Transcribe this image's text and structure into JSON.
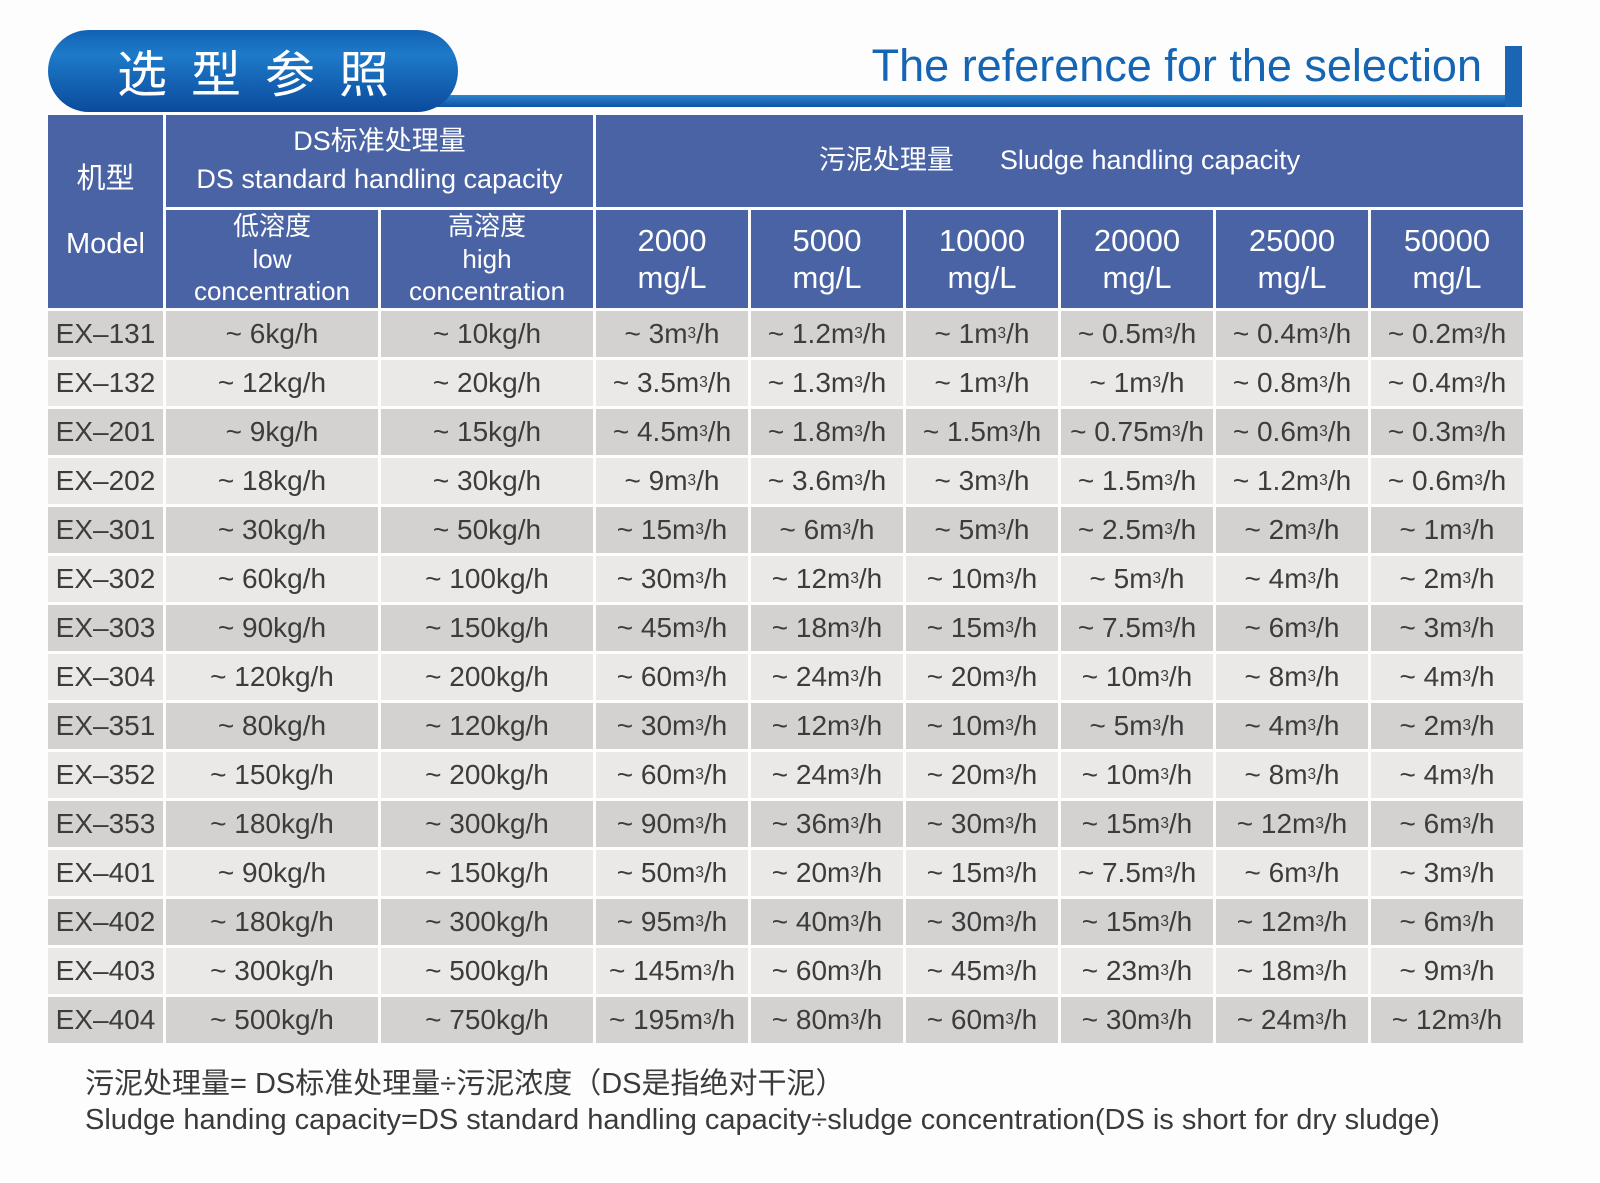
{
  "header": {
    "title_zh": "选型参照",
    "title_en": "The reference for the selection"
  },
  "table": {
    "header": {
      "model_zh": "机型",
      "model_en": "Model",
      "ds_group_zh": "DS标准处理量",
      "ds_group_en": "DS standard handling capacity",
      "sludge_group_zh": "污泥处理量",
      "sludge_group_en": "Sludge handling capacity",
      "sub_columns": [
        {
          "lines": [
            "低溶度",
            "low",
            "concentration"
          ]
        },
        {
          "lines": [
            "高溶度",
            "high",
            "concentration"
          ]
        }
      ],
      "concentration_columns": [
        {
          "value": "2000",
          "unit": "mg/L"
        },
        {
          "value": "5000",
          "unit": "mg/L"
        },
        {
          "value": "10000",
          "unit": "mg/L"
        },
        {
          "value": "20000",
          "unit": "mg/L"
        },
        {
          "value": "25000",
          "unit": "mg/L"
        },
        {
          "value": "50000",
          "unit": "mg/L"
        }
      ]
    },
    "rows": [
      {
        "model": "EX–131",
        "cells": [
          "~ 6kg/h",
          "~ 10kg/h",
          "~ 3m³/h",
          "~ 1.2m³/h",
          "~ 1m³/h",
          "~ 0.5m³/h",
          "~ 0.4m³/h",
          "~ 0.2m³/h"
        ]
      },
      {
        "model": "EX–132",
        "cells": [
          "~ 12kg/h",
          "~ 20kg/h",
          "~ 3.5m³/h",
          "~ 1.3m³/h",
          "~ 1m³/h",
          "~ 1m³/h",
          "~ 0.8m³/h",
          "~ 0.4m³/h"
        ]
      },
      {
        "model": "EX–201",
        "cells": [
          "~ 9kg/h",
          "~ 15kg/h",
          "~ 4.5m³/h",
          "~ 1.8m³/h",
          "~ 1.5m³/h",
          "~ 0.75m³/h",
          "~ 0.6m³/h",
          "~ 0.3m³/h"
        ]
      },
      {
        "model": "EX–202",
        "cells": [
          "~ 18kg/h",
          "~ 30kg/h",
          "~ 9m³/h",
          "~ 3.6m³/h",
          "~ 3m³/h",
          "~ 1.5m³/h",
          "~ 1.2m³/h",
          "~ 0.6m³/h"
        ]
      },
      {
        "model": "EX–301",
        "cells": [
          "~ 30kg/h",
          "~ 50kg/h",
          "~ 15m³/h",
          "~ 6m³/h",
          "~ 5m³/h",
          "~ 2.5m³/h",
          "~ 2m³/h",
          "~ 1m³/h"
        ]
      },
      {
        "model": "EX–302",
        "cells": [
          "~ 60kg/h",
          "~ 100kg/h",
          "~ 30m³/h",
          "~ 12m³/h",
          "~ 10m³/h",
          "~ 5m³/h",
          "~ 4m³/h",
          "~ 2m³/h"
        ]
      },
      {
        "model": "EX–303",
        "cells": [
          "~ 90kg/h",
          "~ 150kg/h",
          "~ 45m³/h",
          "~ 18m³/h",
          "~ 15m³/h",
          "~ 7.5m³/h",
          "~ 6m³/h",
          "~ 3m³/h"
        ]
      },
      {
        "model": "EX–304",
        "cells": [
          "~ 120kg/h",
          "~ 200kg/h",
          "~ 60m³/h",
          "~ 24m³/h",
          "~ 20m³/h",
          "~ 10m³/h",
          "~ 8m³/h",
          "~ 4m³/h"
        ]
      },
      {
        "model": "EX–351",
        "cells": [
          "~ 80kg/h",
          "~ 120kg/h",
          "~ 30m³/h",
          "~ 12m³/h",
          "~ 10m³/h",
          "~ 5m³/h",
          "~ 4m³/h",
          "~ 2m³/h"
        ]
      },
      {
        "model": "EX–352",
        "cells": [
          "~ 150kg/h",
          "~ 200kg/h",
          "~ 60m³/h",
          "~ 24m³/h",
          "~ 20m³/h",
          "~ 10m³/h",
          "~ 8m³/h",
          "~ 4m³/h"
        ]
      },
      {
        "model": "EX–353",
        "cells": [
          "~ 180kg/h",
          "~ 300kg/h",
          "~ 90m³/h",
          "~ 36m³/h",
          "~ 30m³/h",
          "~ 15m³/h",
          "~ 12m³/h",
          "~ 6m³/h"
        ]
      },
      {
        "model": "EX–401",
        "cells": [
          "~ 90kg/h",
          "~ 150kg/h",
          "~ 50m³/h",
          "~ 20m³/h",
          "~ 15m³/h",
          "~ 7.5m³/h",
          "~ 6m³/h",
          "~ 3m³/h"
        ]
      },
      {
        "model": "EX–402",
        "cells": [
          "~ 180kg/h",
          "~ 300kg/h",
          "~ 95m³/h",
          "~ 40m³/h",
          "~ 30m³/h",
          "~ 15m³/h",
          "~ 12m³/h",
          "~ 6m³/h"
        ]
      },
      {
        "model": "EX–403",
        "cells": [
          "~ 300kg/h",
          "~ 500kg/h",
          "~ 145m³/h",
          "~ 60m³/h",
          "~ 45m³/h",
          "~ 23m³/h",
          "~ 18m³/h",
          "~ 9m³/h"
        ]
      },
      {
        "model": "EX–404",
        "cells": [
          "~ 500kg/h",
          "~ 750kg/h",
          "~ 195m³/h",
          "~ 80m³/h",
          "~ 60m³/h",
          "~ 30m³/h",
          "~ 24m³/h",
          "~ 12m³/h"
        ]
      }
    ]
  },
  "footnote": {
    "zh": "污泥处理量= DS标准处理量÷污泥浓度（DS是指绝对干泥）",
    "en": "Sludge handing capacity=DS standard handling capacity÷sludge concentration(DS is short for dry sludge)"
  },
  "colors": {
    "brand_blue": "#1e7ac9",
    "brand_blue_dark": "#0b4a9c",
    "title_text_blue": "#1565b5",
    "table_header_blue": "#4a63a5",
    "row_dark": "#d3d2d1",
    "row_light": "#eae9e7",
    "cell_text": "#3c3c3c"
  }
}
